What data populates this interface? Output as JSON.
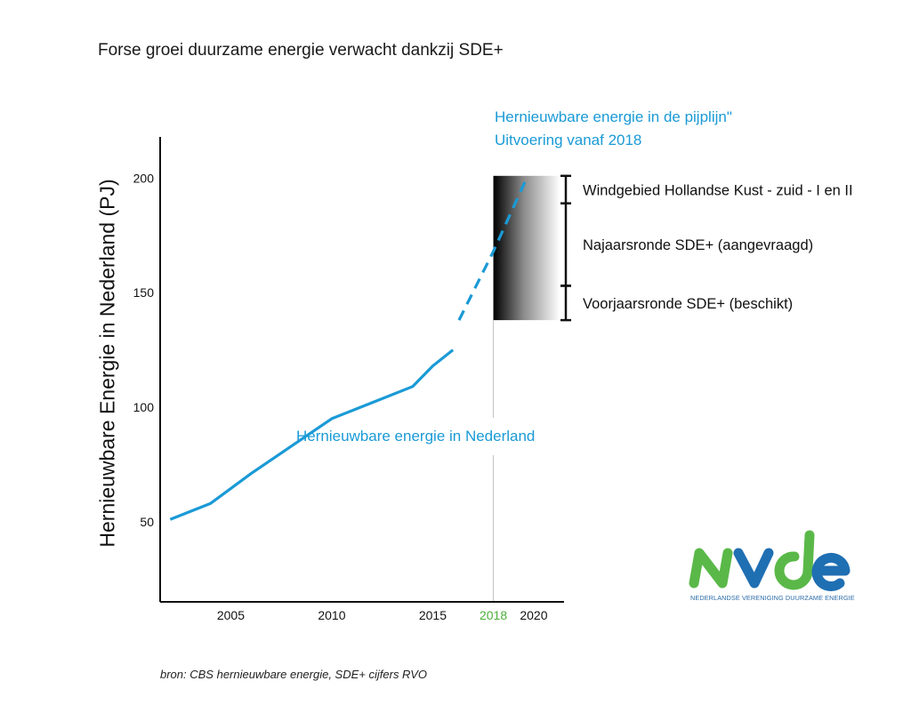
{
  "chart_data": {
    "type": "line",
    "title": "Forse groei duurzame energie verwacht dankzij SDE+",
    "ylabel": "Hernieuwbare Energie in Nederland (PJ)",
    "xlabel": "",
    "xlim": [
      2001.5,
      2021.5
    ],
    "ylim": [
      15,
      218
    ],
    "x_ticks": [
      2005,
      2010,
      2015,
      2018,
      2020
    ],
    "y_ticks": [
      50,
      100,
      150,
      200
    ],
    "highlight_tick": 2018,
    "grid": false,
    "series": [
      {
        "name": "Hernieuwbare energie in Nederland",
        "style": "solid",
        "color": "#1a9ad6",
        "x": [
          2002,
          2004,
          2006,
          2008,
          2010,
          2012,
          2014,
          2015,
          2016
        ],
        "y": [
          51,
          58,
          71,
          83,
          95,
          102,
          109,
          118,
          125
        ]
      },
      {
        "name": "Hernieuwbare energie in de pijplijn\" Uitvoering vanaf 2018",
        "style": "dashed",
        "color": "#1a9ad6",
        "x": [
          2016.3,
          2018,
          2019.7
        ],
        "y": [
          138,
          168,
          201
        ]
      }
    ],
    "range_box": {
      "x": [
        2018,
        2021.3
      ],
      "y": [
        138,
        201
      ]
    },
    "brackets": [
      {
        "label": "Windgebied Hollandse Kust - zuid - I en II",
        "from": 189,
        "to": 201
      },
      {
        "label": "Najaarsronde SDE+ (aangevraagd)",
        "from": 153,
        "to": 189
      },
      {
        "label": "Voorjaarsronde SDE+ (beschikt)",
        "from": 138,
        "to": 153
      }
    ],
    "annotations": [
      {
        "text": "Hernieuwbare energie in de pijplijn\"",
        "color": "#1a9ad6"
      },
      {
        "text": "Uitvoering vanaf 2018",
        "color": "#1a9ad6"
      },
      {
        "text": "Hernieuwbare energie in Nederland",
        "color": "#1a9ad6"
      }
    ],
    "colors": {
      "line": "#1a9ad6",
      "highlight": "#4caf3a",
      "axis": "#111111"
    }
  },
  "source": "bron: CBS hernieuwbare energie, SDE+ cijfers RVO",
  "logo": {
    "wordmark": "nvde",
    "subtitle": "NEDERLANDSE VERENIGING DUURZAME ENERGIE",
    "colors": {
      "green": "#5ab848",
      "blue": "#1f6fb3"
    }
  }
}
